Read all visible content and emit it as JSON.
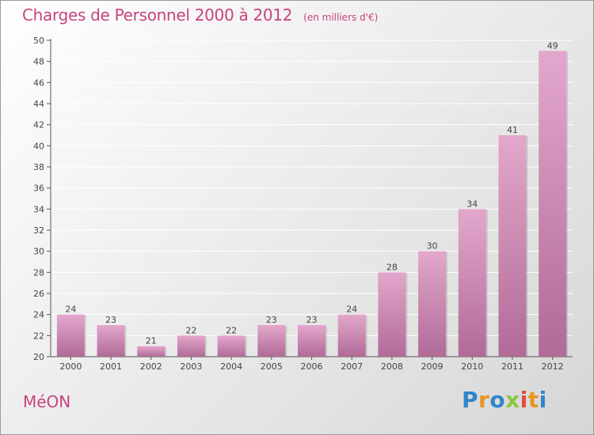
{
  "header": {
    "title": "Charges de Personnel 2000 à 2012",
    "subtitle": "(en milliers d'€)"
  },
  "footer": {
    "commune": "MéON",
    "logo": {
      "letters": [
        "P",
        "r",
        "o",
        "x",
        "i",
        "t",
        "i"
      ],
      "colors": [
        "#2f86c9",
        "#e69524",
        "#2f86c9",
        "#8cc63f",
        "#e84a3c",
        "#e69524",
        "#2f86c9"
      ]
    }
  },
  "colors": {
    "bar_top": "#e3a7cd",
    "bar_bottom": "#b06b96",
    "grid": "#ffffff",
    "text": "#444444"
  },
  "chart_data": {
    "type": "bar",
    "title": "Charges de Personnel 2000 à 2012",
    "subtitle": "(en milliers d'€)",
    "categories": [
      "2000",
      "2001",
      "2002",
      "2003",
      "2004",
      "2005",
      "2006",
      "2007",
      "2008",
      "2009",
      "2010",
      "2011",
      "2012"
    ],
    "values": [
      24,
      23,
      21,
      22,
      22,
      23,
      23,
      24,
      28,
      30,
      34,
      41,
      49
    ],
    "ylim": [
      20,
      50
    ],
    "yticks": [
      20,
      22,
      24,
      26,
      28,
      30,
      32,
      34,
      36,
      38,
      40,
      42,
      44,
      46,
      48,
      50
    ],
    "grid": true,
    "legend": "none",
    "data_labels": true
  }
}
